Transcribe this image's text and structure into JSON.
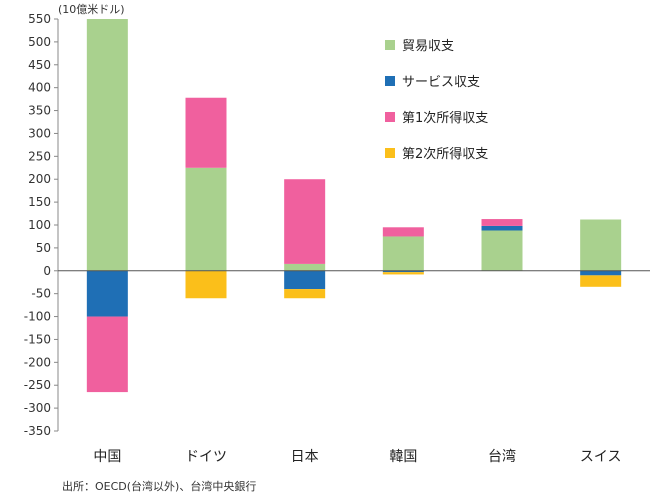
{
  "chart_data": {
    "type": "bar",
    "stacked": true,
    "unit_label": "(10億米ドル)",
    "source": "出所：OECD(台湾以外)、台湾中央銀行",
    "categories": [
      "中国",
      "ドイツ",
      "日本",
      "韓国",
      "台湾",
      "スイス"
    ],
    "ylim": [
      -350,
      550
    ],
    "yticks": [
      550,
      500,
      450,
      400,
      350,
      300,
      250,
      200,
      150,
      100,
      50,
      0,
      -50,
      -100,
      -150,
      -200,
      -250,
      -300,
      -350
    ],
    "grid": false,
    "legend_position": "top-right",
    "series": [
      {
        "name": "貿易収支",
        "color": "#a9d18e",
        "values": [
          550,
          225,
          15,
          75,
          88,
          112
        ]
      },
      {
        "name": "サービス収支",
        "color": "#1f6fb5",
        "values": [
          -100,
          0,
          -40,
          -3,
          10,
          -10
        ]
      },
      {
        "name": "第1次所得収支",
        "color": "#f0609e",
        "values": [
          -165,
          153,
          185,
          20,
          15,
          0
        ]
      },
      {
        "name": "第2次所得収支",
        "color": "#fbbf1a",
        "values": [
          0,
          -60,
          -20,
          -5,
          0,
          -25
        ]
      }
    ]
  }
}
